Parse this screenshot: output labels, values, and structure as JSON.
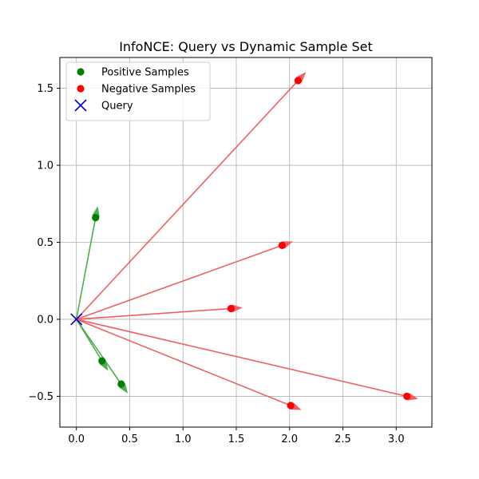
{
  "chart_data": {
    "type": "scatter",
    "title": "InfoNCE: Query vs Dynamic Sample Set",
    "xlabel": "",
    "ylabel": "",
    "xlim": [
      -0.155,
      3.335
    ],
    "ylim": [
      -0.7,
      1.7
    ],
    "xticks": [
      0.0,
      0.5,
      1.0,
      1.5,
      2.0,
      2.5,
      3.0
    ],
    "xtick_labels": [
      "0.0",
      "0.5",
      "1.0",
      "1.5",
      "2.0",
      "2.5",
      "3.0"
    ],
    "yticks": [
      -0.5,
      0.0,
      0.5,
      1.0,
      1.5
    ],
    "ytick_labels": [
      "−0.5",
      "0.0",
      "0.5",
      "1.0",
      "1.5"
    ],
    "grid": true,
    "legend_position": "top-left",
    "query": {
      "x": 0.0,
      "y": 0.0
    },
    "series": [
      {
        "name": "Positive Samples",
        "color": "#008000",
        "arrow_color": "#4caf50",
        "marker": "circle",
        "points": [
          {
            "x": 0.18,
            "y": 0.66
          },
          {
            "x": 0.24,
            "y": -0.27
          },
          {
            "x": 0.42,
            "y": -0.42
          }
        ]
      },
      {
        "name": "Negative Samples",
        "color": "#ff0000",
        "arrow_color": "#f06060",
        "marker": "circle",
        "points": [
          {
            "x": 2.08,
            "y": 1.55
          },
          {
            "x": 1.93,
            "y": 0.48
          },
          {
            "x": 1.45,
            "y": 0.07
          },
          {
            "x": 2.01,
            "y": -0.56
          },
          {
            "x": 3.1,
            "y": -0.5
          }
        ]
      },
      {
        "name": "Query",
        "color": "#0000cc",
        "marker": "x",
        "points": [
          {
            "x": 0.0,
            "y": 0.0
          }
        ]
      }
    ]
  }
}
